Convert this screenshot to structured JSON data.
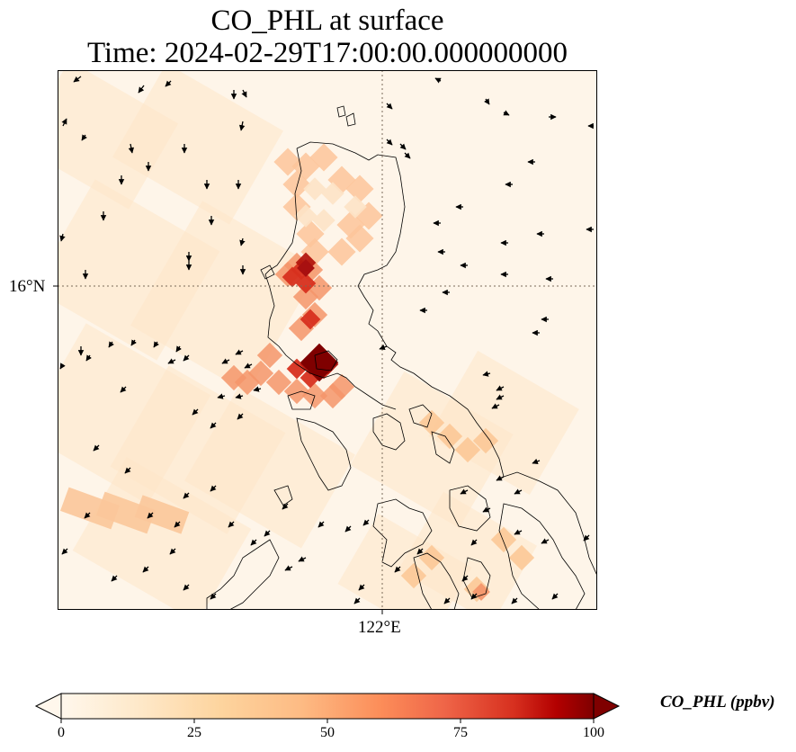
{
  "title": {
    "line1": "CO_PHL at surface",
    "line2": "Time: 2024-02-29T17:00:00.000000000"
  },
  "map": {
    "latitude_gridline_label": "16°N",
    "longitude_gridline_label": "122°E",
    "field": "CO_PHL",
    "level": "surface",
    "wind_vectors": "shown as black arrows",
    "coastlines": true
  },
  "colorbar": {
    "label": "CO_PHL (ppbv)",
    "ticks": [
      "0",
      "25",
      "50",
      "75",
      "100"
    ],
    "range": [
      0,
      100
    ],
    "colormap": "OrRd",
    "extend": "both",
    "colors": [
      "#fff7ec",
      "#fdd49e",
      "#fc8d59",
      "#d7301f",
      "#7f0000"
    ]
  }
}
